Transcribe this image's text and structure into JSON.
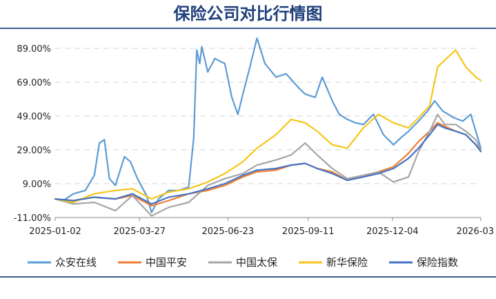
{
  "chart_data": {
    "type": "line",
    "title": "保险公司对比行情图",
    "xlabel": "",
    "ylabel": "",
    "x_ticks": [
      "2025-01-02",
      "2025-03-27",
      "2025-06-23",
      "2025-09-11",
      "2025-12-04",
      "2026-03"
    ],
    "y_ticks": [
      "-11.00%",
      "9.00%",
      "29.00%",
      "49.00%",
      "69.00%",
      "89.00%"
    ],
    "ylim": [
      -11,
      98
    ],
    "grid": "horizontal-dashed",
    "legend_position": "bottom",
    "series": [
      {
        "name": "众安在线",
        "color": "#5b9bd5",
        "values": [
          [
            "2025-01-02",
            0
          ],
          [
            "2025-01-10",
            -1
          ],
          [
            "2025-01-20",
            3
          ],
          [
            "2025-02-01",
            5
          ],
          [
            "2025-02-10",
            14
          ],
          [
            "2025-02-15",
            33
          ],
          [
            "2025-02-20",
            35
          ],
          [
            "2025-02-25",
            12
          ],
          [
            "2025-03-03",
            8
          ],
          [
            "2025-03-12",
            25
          ],
          [
            "2025-03-18",
            22
          ],
          [
            "2025-03-25",
            12
          ],
          [
            "2025-04-03",
            2
          ],
          [
            "2025-04-08",
            -8
          ],
          [
            "2025-04-15",
            0
          ],
          [
            "2025-04-25",
            5
          ],
          [
            "2025-05-05",
            5
          ],
          [
            "2025-05-15",
            7
          ],
          [
            "2025-05-20",
            36
          ],
          [
            "2025-05-23",
            88
          ],
          [
            "2025-05-26",
            80
          ],
          [
            "2025-05-28",
            90
          ],
          [
            "2025-06-03",
            75
          ],
          [
            "2025-06-10",
            83
          ],
          [
            "2025-06-20",
            80
          ],
          [
            "2025-06-27",
            60
          ],
          [
            "2025-07-03",
            50
          ],
          [
            "2025-07-08",
            62
          ],
          [
            "2025-07-15",
            78
          ],
          [
            "2025-07-22",
            95
          ],
          [
            "2025-07-30",
            80
          ],
          [
            "2025-08-10",
            72
          ],
          [
            "2025-08-20",
            74
          ],
          [
            "2025-09-01",
            66
          ],
          [
            "2025-09-08",
            62
          ],
          [
            "2025-09-18",
            60
          ],
          [
            "2025-09-25",
            72
          ],
          [
            "2025-10-05",
            58
          ],
          [
            "2025-10-12",
            50
          ],
          [
            "2025-10-20",
            47
          ],
          [
            "2025-10-28",
            45
          ],
          [
            "2025-11-05",
            44
          ],
          [
            "2025-11-15",
            50
          ],
          [
            "2025-11-25",
            38
          ],
          [
            "2025-12-05",
            32
          ],
          [
            "2025-12-12",
            36
          ],
          [
            "2025-12-20",
            40
          ],
          [
            "2025-12-30",
            46
          ],
          [
            "2026-01-08",
            52
          ],
          [
            "2026-01-15",
            58
          ],
          [
            "2026-01-23",
            52
          ],
          [
            "2026-02-03",
            48
          ],
          [
            "2026-02-12",
            46
          ],
          [
            "2026-02-20",
            50
          ],
          [
            "2026-02-26",
            38
          ],
          [
            "2026-03-02",
            30
          ]
        ]
      },
      {
        "name": "中国平安",
        "color": "#ed7d31",
        "values": [
          [
            "2025-01-02",
            0
          ],
          [
            "2025-01-20",
            -1
          ],
          [
            "2025-02-10",
            1
          ],
          [
            "2025-03-03",
            0
          ],
          [
            "2025-03-20",
            2
          ],
          [
            "2025-04-08",
            -4
          ],
          [
            "2025-04-25",
            -1
          ],
          [
            "2025-05-15",
            3
          ],
          [
            "2025-06-03",
            5
          ],
          [
            "2025-06-20",
            8
          ],
          [
            "2025-07-08",
            13
          ],
          [
            "2025-07-22",
            16
          ],
          [
            "2025-08-10",
            17
          ],
          [
            "2025-08-25",
            20
          ],
          [
            "2025-09-08",
            21
          ],
          [
            "2025-09-20",
            18
          ],
          [
            "2025-10-05",
            16
          ],
          [
            "2025-10-20",
            11
          ],
          [
            "2025-11-05",
            13
          ],
          [
            "2025-11-20",
            16
          ],
          [
            "2025-12-05",
            19
          ],
          [
            "2025-12-20",
            27
          ],
          [
            "2025-12-30",
            34
          ],
          [
            "2026-01-10",
            40
          ],
          [
            "2026-01-18",
            45
          ],
          [
            "2026-01-25",
            43
          ],
          [
            "2026-02-05",
            40
          ],
          [
            "2026-02-15",
            38
          ],
          [
            "2026-02-25",
            32
          ],
          [
            "2026-03-02",
            29
          ]
        ]
      },
      {
        "name": "中国太保",
        "color": "#a5a5a5",
        "values": [
          [
            "2025-01-02",
            0
          ],
          [
            "2025-01-20",
            -3
          ],
          [
            "2025-02-10",
            -2
          ],
          [
            "2025-03-03",
            -7
          ],
          [
            "2025-03-20",
            2
          ],
          [
            "2025-04-08",
            -10
          ],
          [
            "2025-04-25",
            -5
          ],
          [
            "2025-05-15",
            -2
          ],
          [
            "2025-06-03",
            8
          ],
          [
            "2025-06-20",
            12
          ],
          [
            "2025-07-08",
            15
          ],
          [
            "2025-07-22",
            20
          ],
          [
            "2025-08-10",
            23
          ],
          [
            "2025-08-25",
            26
          ],
          [
            "2025-09-08",
            33
          ],
          [
            "2025-09-20",
            26
          ],
          [
            "2025-10-05",
            18
          ],
          [
            "2025-10-20",
            12
          ],
          [
            "2025-11-05",
            14
          ],
          [
            "2025-11-20",
            16
          ],
          [
            "2025-12-05",
            10
          ],
          [
            "2025-12-20",
            13
          ],
          [
            "2025-12-30",
            28
          ],
          [
            "2026-01-10",
            40
          ],
          [
            "2026-01-18",
            50
          ],
          [
            "2026-01-25",
            44
          ],
          [
            "2026-02-05",
            44
          ],
          [
            "2026-02-15",
            40
          ],
          [
            "2026-02-25",
            35
          ],
          [
            "2026-03-02",
            29
          ]
        ]
      },
      {
        "name": "新华保险",
        "color": "#f5c518",
        "values": [
          [
            "2025-01-02",
            0
          ],
          [
            "2025-01-20",
            -2
          ],
          [
            "2025-02-10",
            3
          ],
          [
            "2025-03-03",
            5
          ],
          [
            "2025-03-20",
            6
          ],
          [
            "2025-04-08",
            0
          ],
          [
            "2025-04-25",
            4
          ],
          [
            "2025-05-15",
            6
          ],
          [
            "2025-06-03",
            10
          ],
          [
            "2025-06-20",
            15
          ],
          [
            "2025-07-08",
            22
          ],
          [
            "2025-07-22",
            30
          ],
          [
            "2025-08-10",
            38
          ],
          [
            "2025-08-25",
            47
          ],
          [
            "2025-09-08",
            45
          ],
          [
            "2025-09-20",
            40
          ],
          [
            "2025-10-05",
            32
          ],
          [
            "2025-10-20",
            30
          ],
          [
            "2025-11-05",
            42
          ],
          [
            "2025-11-20",
            50
          ],
          [
            "2025-12-05",
            45
          ],
          [
            "2025-12-20",
            42
          ],
          [
            "2025-12-30",
            48
          ],
          [
            "2026-01-10",
            55
          ],
          [
            "2026-01-18",
            78
          ],
          [
            "2026-01-25",
            82
          ],
          [
            "2026-02-05",
            88
          ],
          [
            "2026-02-15",
            78
          ],
          [
            "2026-02-25",
            72
          ],
          [
            "2026-03-02",
            70
          ]
        ]
      },
      {
        "name": "保险指数",
        "color": "#4472c4",
        "values": [
          [
            "2025-01-02",
            0
          ],
          [
            "2025-01-20",
            -1
          ],
          [
            "2025-02-10",
            1
          ],
          [
            "2025-03-03",
            0
          ],
          [
            "2025-03-20",
            3
          ],
          [
            "2025-04-08",
            -3
          ],
          [
            "2025-04-25",
            1
          ],
          [
            "2025-05-15",
            3
          ],
          [
            "2025-06-03",
            6
          ],
          [
            "2025-06-20",
            9
          ],
          [
            "2025-07-08",
            14
          ],
          [
            "2025-07-22",
            17
          ],
          [
            "2025-08-10",
            18
          ],
          [
            "2025-08-25",
            20
          ],
          [
            "2025-09-08",
            21
          ],
          [
            "2025-09-20",
            18
          ],
          [
            "2025-10-05",
            15
          ],
          [
            "2025-10-20",
            11
          ],
          [
            "2025-11-05",
            13
          ],
          [
            "2025-11-20",
            15
          ],
          [
            "2025-12-05",
            18
          ],
          [
            "2025-12-20",
            24
          ],
          [
            "2025-12-30",
            30
          ],
          [
            "2026-01-10",
            38
          ],
          [
            "2026-01-18",
            44
          ],
          [
            "2026-01-25",
            42
          ],
          [
            "2026-02-05",
            40
          ],
          [
            "2026-02-15",
            38
          ],
          [
            "2026-02-25",
            32
          ],
          [
            "2026-03-02",
            28
          ]
        ]
      }
    ]
  }
}
